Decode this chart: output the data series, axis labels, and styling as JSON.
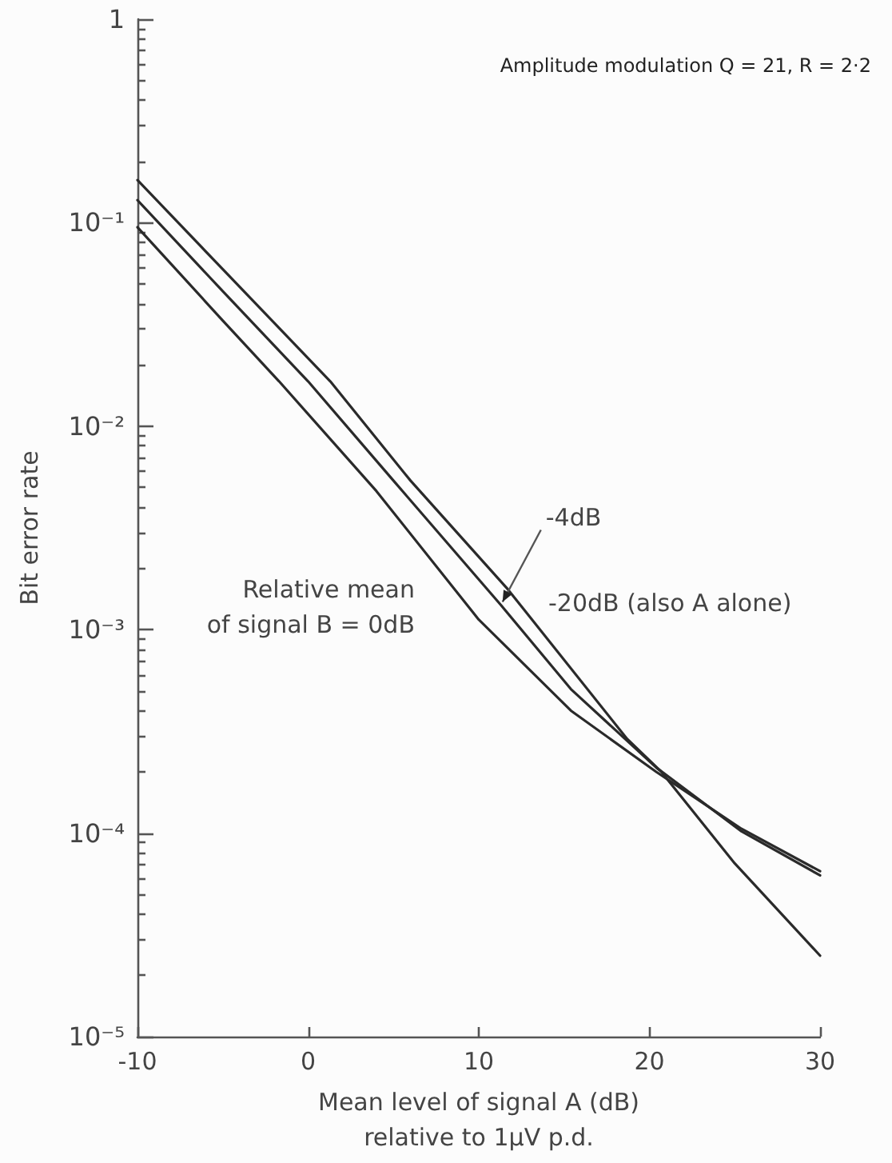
{
  "chart_data": {
    "type": "line",
    "title": "Amplitude modulation Q = 21, R = 2·2",
    "xlabel": "Mean level of signal A (dB)\nrelative to 1µV p.d.",
    "ylabel": "Bit error rate",
    "xlim": [
      -10,
      30
    ],
    "xticks": [
      -10,
      0,
      10,
      20,
      30
    ],
    "ylim": [
      1e-05,
      1
    ],
    "yticks": [
      {
        "value": 1,
        "label": "1"
      },
      {
        "value": 0.1,
        "label": "10⁻¹"
      },
      {
        "value": 0.01,
        "label": "10⁻²"
      },
      {
        "value": 0.001,
        "label": "10⁻³"
      },
      {
        "value": 0.0001,
        "label": "10⁻⁴"
      },
      {
        "value": 1e-05,
        "label": "10⁻⁵"
      }
    ],
    "log": "y",
    "marker": "none",
    "line_style": "solid",
    "series": [
      {
        "color": "#2a2a2a",
        "x": [
          -10,
          -5,
          1.3,
          6,
          11.7,
          18.7,
          20.7,
          25,
          30
        ],
        "values": [
          0.162,
          0.059,
          0.0166,
          0.0054,
          0.00158,
          0.00029,
          0.0002,
          7.1e-05,
          2.5e-05
        ]
      },
      {
        "color": "#2a2a2a",
        "x": [
          -10,
          -5,
          0,
          5,
          11.3,
          15.4,
          20.4,
          25.4,
          30
        ],
        "values": [
          0.129,
          0.046,
          0.0166,
          0.0054,
          0.00132,
          0.00051,
          0.00021,
          0.000102,
          6.2e-05
        ]
      },
      {
        "color": "#2a2a2a",
        "x": [
          -10,
          -5,
          -1.7,
          4,
          10,
          15.4,
          20.4,
          25.4,
          30
        ],
        "values": [
          0.095,
          0.033,
          0.0166,
          0.0048,
          0.00112,
          0.0004,
          0.0002,
          0.000105,
          6.5e-05
        ]
      }
    ],
    "annotations": [
      {
        "text": "Relative mean\nof signal B = 0dB",
        "x": 10,
        "y": 0.00112
      },
      {
        "text": "-4dB",
        "x": 11.3,
        "y": 0.00132
      },
      {
        "text": "-20dB (also A alone)",
        "x": 12.2,
        "y": 0.0014
      }
    ]
  }
}
